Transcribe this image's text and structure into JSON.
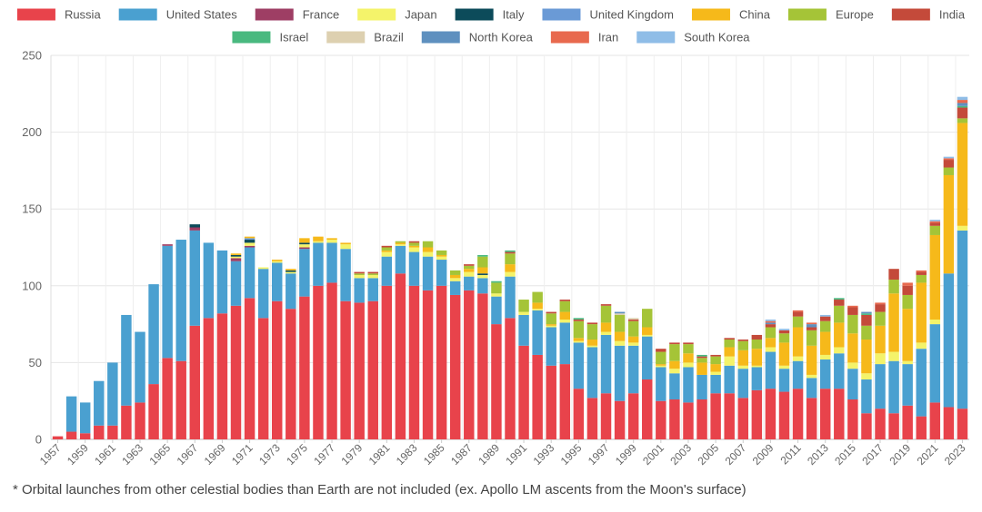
{
  "footnote": "* Orbital launches from other celestial bodies than Earth are not included (ex. Apollo LM ascents from the Moon's surface)",
  "chart_data": {
    "type": "bar",
    "stacked": true,
    "title": "",
    "xlabel": "",
    "ylabel": "",
    "ylim": [
      0,
      250
    ],
    "yticks": [
      0,
      50,
      100,
      150,
      200,
      250
    ],
    "grid": true,
    "legend_position": "top",
    "categories": [
      "1957",
      "1958",
      "1959",
      "1960",
      "1961",
      "1962",
      "1963",
      "1964",
      "1965",
      "1966",
      "1967",
      "1968",
      "1969",
      "1970",
      "1971",
      "1972",
      "1973",
      "1974",
      "1975",
      "1976",
      "1977",
      "1978",
      "1979",
      "1980",
      "1981",
      "1982",
      "1983",
      "1984",
      "1985",
      "1986",
      "1987",
      "1988",
      "1989",
      "1990",
      "1991",
      "1992",
      "1993",
      "1994",
      "1995",
      "1996",
      "1997",
      "1998",
      "1999",
      "2000",
      "2001",
      "2002",
      "2003",
      "2004",
      "2005",
      "2006",
      "2007",
      "2008",
      "2009",
      "2010",
      "2011",
      "2012",
      "2013",
      "2014",
      "2015",
      "2016",
      "2017",
      "2018",
      "2019",
      "2020",
      "2021",
      "2022",
      "2023"
    ],
    "series": [
      {
        "name": "Russia",
        "color": "#e8434b",
        "values": [
          2,
          5,
          4,
          9,
          9,
          22,
          24,
          36,
          53,
          51,
          74,
          79,
          82,
          87,
          92,
          79,
          90,
          85,
          93,
          100,
          102,
          90,
          89,
          90,
          100,
          108,
          100,
          97,
          100,
          94,
          97,
          95,
          75,
          79,
          61,
          55,
          48,
          49,
          33,
          27,
          30,
          25,
          30,
          39,
          25,
          26,
          24,
          26,
          30,
          30,
          27,
          32,
          33,
          31,
          33,
          27,
          33,
          33,
          26,
          17,
          20,
          17,
          22,
          15,
          24,
          21,
          20
        ]
      },
      {
        "name": "United States",
        "color": "#4aa0d0",
        "values": [
          0,
          23,
          20,
          29,
          41,
          59,
          46,
          65,
          73,
          79,
          62,
          49,
          41,
          29,
          33,
          32,
          25,
          23,
          31,
          28,
          26,
          34,
          16,
          15,
          19,
          18,
          22,
          22,
          17,
          9,
          9,
          10,
          18,
          27,
          20,
          29,
          25,
          27,
          30,
          33,
          38,
          36,
          31,
          28,
          22,
          17,
          23,
          16,
          12,
          18,
          19,
          15,
          24,
          15,
          18,
          13,
          19,
          23,
          20,
          22,
          29,
          34,
          27,
          44,
          51,
          87,
          116
        ]
      },
      {
        "name": "France",
        "color": "#9e3e64",
        "values": [
          0,
          0,
          0,
          0,
          0,
          0,
          0,
          0,
          1,
          0,
          2,
          0,
          0,
          2,
          1,
          0,
          0,
          0,
          1,
          0,
          0,
          0,
          0,
          0,
          0,
          0,
          0,
          0,
          0,
          0,
          0,
          0,
          0,
          0,
          0,
          0,
          0,
          0,
          0,
          0,
          0,
          0,
          0,
          0,
          0,
          0,
          0,
          0,
          0,
          0,
          0,
          0,
          0,
          0,
          0,
          0,
          0,
          0,
          0,
          0,
          0,
          0,
          0,
          0,
          0,
          0,
          0
        ]
      },
      {
        "name": "Japan",
        "color": "#f4f36a",
        "values": [
          0,
          0,
          0,
          0,
          0,
          0,
          0,
          0,
          0,
          0,
          0,
          0,
          0,
          1,
          2,
          1,
          1,
          1,
          2,
          1,
          2,
          3,
          2,
          2,
          3,
          1,
          3,
          3,
          2,
          2,
          3,
          2,
          2,
          3,
          2,
          1,
          1,
          2,
          1,
          1,
          2,
          3,
          2,
          1,
          1,
          3,
          3,
          0,
          2,
          6,
          2,
          1,
          3,
          2,
          3,
          2,
          3,
          4,
          4,
          4,
          7,
          6,
          2,
          4,
          3,
          0,
          3
        ]
      },
      {
        "name": "Italy",
        "color": "#0c4b5a",
        "values": [
          0,
          0,
          0,
          0,
          0,
          0,
          0,
          0,
          0,
          0,
          2,
          0,
          0,
          1,
          2,
          0,
          0,
          1,
          1,
          0,
          0,
          0,
          0,
          0,
          0,
          0,
          0,
          0,
          0,
          0,
          0,
          1,
          0,
          0,
          0,
          0,
          0,
          0,
          0,
          0,
          0,
          0,
          0,
          0,
          0,
          0,
          0,
          0,
          0,
          0,
          0,
          0,
          0,
          0,
          0,
          0,
          0,
          0,
          0,
          0,
          0,
          0,
          0,
          0,
          0,
          0,
          0
        ]
      },
      {
        "name": "United Kingdom",
        "color": "#6a9ad6",
        "values": [
          0,
          0,
          0,
          0,
          0,
          0,
          0,
          0,
          0,
          0,
          0,
          0,
          0,
          0,
          1,
          0,
          0,
          0,
          0,
          0,
          0,
          0,
          0,
          0,
          0,
          0,
          0,
          0,
          0,
          0,
          0,
          0,
          0,
          0,
          0,
          0,
          0,
          0,
          0,
          0,
          0,
          0,
          0,
          0,
          0,
          0,
          0,
          0,
          0,
          0,
          0,
          0,
          0,
          0,
          0,
          0,
          0,
          0,
          0,
          0,
          0,
          0,
          0,
          0,
          0,
          0,
          0
        ]
      },
      {
        "name": "China",
        "color": "#f6b91a",
        "values": [
          0,
          0,
          0,
          0,
          0,
          0,
          0,
          0,
          0,
          0,
          0,
          0,
          0,
          1,
          1,
          0,
          1,
          1,
          3,
          3,
          1,
          1,
          0,
          0,
          1,
          1,
          1,
          3,
          1,
          2,
          2,
          4,
          0,
          5,
          0,
          4,
          1,
          5,
          2,
          4,
          6,
          6,
          4,
          5,
          1,
          5,
          6,
          8,
          5,
          6,
          10,
          11,
          6,
          15,
          19,
          19,
          15,
          16,
          19,
          22,
          18,
          38,
          34,
          39,
          55,
          64,
          67
        ]
      },
      {
        "name": "Europe",
        "color": "#a5c437",
        "values": [
          0,
          0,
          0,
          0,
          0,
          0,
          0,
          0,
          0,
          0,
          0,
          0,
          0,
          0,
          0,
          0,
          0,
          0,
          0,
          0,
          0,
          0,
          1,
          1,
          2,
          1,
          2,
          4,
          3,
          3,
          2,
          7,
          7,
          7,
          8,
          7,
          7,
          7,
          11,
          10,
          11,
          11,
          10,
          12,
          8,
          11,
          6,
          3,
          5,
          5,
          6,
          6,
          7,
          6,
          7,
          10,
          7,
          11,
          12,
          9,
          9,
          9,
          9,
          5,
          6,
          5,
          3
        ]
      },
      {
        "name": "India",
        "color": "#c44a3a",
        "values": [
          0,
          0,
          0,
          0,
          0,
          0,
          0,
          0,
          0,
          0,
          0,
          0,
          0,
          0,
          0,
          0,
          0,
          0,
          0,
          0,
          0,
          0,
          1,
          1,
          1,
          0,
          1,
          0,
          0,
          0,
          1,
          0,
          0,
          1,
          0,
          0,
          1,
          1,
          1,
          1,
          1,
          0,
          1,
          0,
          2,
          1,
          1,
          1,
          1,
          1,
          1,
          3,
          2,
          2,
          3,
          2,
          3,
          4,
          5,
          7,
          5,
          7,
          6,
          2,
          2,
          5,
          7
        ]
      },
      {
        "name": "Israel",
        "color": "#49b97f",
        "values": [
          0,
          0,
          0,
          0,
          0,
          0,
          0,
          0,
          0,
          0,
          0,
          0,
          0,
          0,
          0,
          0,
          0,
          0,
          0,
          0,
          0,
          0,
          0,
          0,
          0,
          0,
          0,
          0,
          0,
          0,
          0,
          1,
          1,
          1,
          0,
          0,
          0,
          0,
          1,
          0,
          0,
          0,
          0,
          0,
          0,
          0,
          0,
          1,
          0,
          0,
          0,
          0,
          0,
          0,
          0,
          0,
          0,
          1,
          0,
          1,
          0,
          0,
          0,
          0,
          0,
          0,
          1
        ]
      },
      {
        "name": "Brazil",
        "color": "#ddd0b0",
        "values": [
          0,
          0,
          0,
          0,
          0,
          0,
          0,
          0,
          0,
          0,
          0,
          0,
          0,
          0,
          0,
          0,
          0,
          0,
          0,
          0,
          0,
          0,
          0,
          0,
          0,
          0,
          0,
          0,
          0,
          0,
          0,
          0,
          0,
          0,
          0,
          0,
          0,
          0,
          0,
          0,
          0,
          1,
          1,
          0,
          0,
          0,
          0,
          0,
          0,
          0,
          0,
          0,
          0,
          0,
          0,
          0,
          0,
          0,
          0,
          0,
          0,
          0,
          0,
          0,
          0,
          0,
          0
        ]
      },
      {
        "name": "North Korea",
        "color": "#5e90bf",
        "values": [
          0,
          0,
          0,
          0,
          0,
          0,
          0,
          0,
          0,
          0,
          0,
          0,
          0,
          0,
          0,
          0,
          0,
          0,
          0,
          0,
          0,
          0,
          0,
          0,
          0,
          0,
          0,
          0,
          0,
          0,
          0,
          0,
          0,
          0,
          0,
          0,
          0,
          0,
          0,
          0,
          0,
          1,
          0,
          0,
          0,
          0,
          0,
          0,
          0,
          0,
          0,
          0,
          1,
          0,
          0,
          2,
          0,
          0,
          0,
          1,
          0,
          0,
          0,
          0,
          0,
          0,
          2
        ]
      },
      {
        "name": "Iran",
        "color": "#e8694e",
        "values": [
          0,
          0,
          0,
          0,
          0,
          0,
          0,
          0,
          0,
          0,
          0,
          0,
          0,
          0,
          0,
          0,
          0,
          0,
          0,
          0,
          0,
          0,
          0,
          0,
          0,
          0,
          0,
          0,
          0,
          0,
          0,
          0,
          0,
          0,
          0,
          0,
          0,
          0,
          0,
          0,
          0,
          0,
          0,
          0,
          0,
          0,
          0,
          0,
          0,
          0,
          0,
          0,
          1,
          0,
          1,
          1,
          0,
          0,
          1,
          0,
          1,
          0,
          2,
          1,
          1,
          1,
          2
        ]
      },
      {
        "name": "South Korea",
        "color": "#8fbde7",
        "values": [
          0,
          0,
          0,
          0,
          0,
          0,
          0,
          0,
          0,
          0,
          0,
          0,
          0,
          0,
          0,
          0,
          0,
          0,
          0,
          0,
          0,
          0,
          0,
          0,
          0,
          0,
          0,
          0,
          0,
          0,
          0,
          0,
          0,
          0,
          0,
          0,
          0,
          0,
          0,
          0,
          0,
          0,
          0,
          0,
          0,
          0,
          0,
          0,
          0,
          0,
          0,
          0,
          1,
          1,
          0,
          0,
          1,
          0,
          0,
          0,
          0,
          0,
          0,
          0,
          1,
          1,
          2
        ]
      }
    ]
  }
}
